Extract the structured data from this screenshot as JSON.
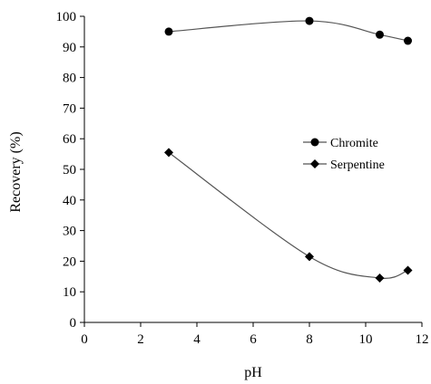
{
  "chart_data": {
    "type": "line",
    "xlabel": "pH",
    "ylabel": "Recovery (%)",
    "xlim": [
      0,
      12
    ],
    "ylim": [
      0,
      100
    ],
    "x_ticks": [
      "0",
      "2",
      "4",
      "6",
      "8",
      "10",
      "12"
    ],
    "y_ticks": [
      "0",
      "10",
      "20",
      "30",
      "40",
      "50",
      "60",
      "70",
      "80",
      "90",
      "100"
    ],
    "grid": false,
    "legend_position": "right-middle",
    "series": [
      {
        "name": "Chromite",
        "marker": "circle",
        "x": [
          3,
          8,
          10.5,
          11.5
        ],
        "y": [
          95,
          98.5,
          94,
          92
        ]
      },
      {
        "name": "Serpentine",
        "marker": "diamond",
        "x": [
          3,
          8,
          10.5,
          11.5
        ],
        "y": [
          55.5,
          21.5,
          14.5,
          17
        ]
      }
    ],
    "colors": {
      "marker": "#000000",
      "line": "#555555",
      "axis": "#000000"
    }
  }
}
